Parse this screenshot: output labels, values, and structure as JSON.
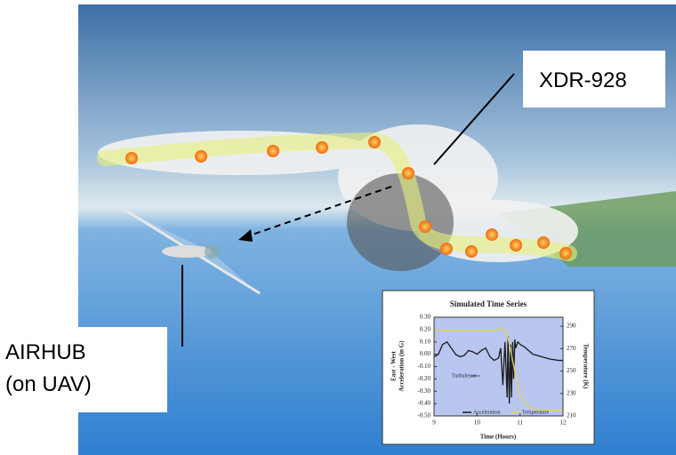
{
  "callouts": {
    "sensor": "XDR-928",
    "platform": [
      "AIRHUB",
      "(on UAV)"
    ]
  },
  "inset_chart": {
    "type": "line",
    "title": "Simulated Time Series",
    "x_label": "Time (Hours)",
    "y_label": [
      "East - West",
      "Acceleration (in G)"
    ],
    "y2_label": "Temperature (K)",
    "annotation": "Turbulence",
    "xlim": [
      9,
      12
    ],
    "xticks": [
      9,
      10,
      11,
      12
    ],
    "ylim": [
      -0.5,
      0.3
    ],
    "yticks": [
      {
        "value": 0.3,
        "label": "0.30"
      },
      {
        "value": 0.2,
        "label": "0.20"
      },
      {
        "value": 0.1,
        "label": "0.10"
      },
      {
        "value": 0,
        "label": "0.00"
      },
      {
        "value": -0.1,
        "label": "-0.10"
      },
      {
        "value": -0.2,
        "label": "-0.20"
      },
      {
        "value": -0.3,
        "label": "-0.30"
      },
      {
        "value": -0.4,
        "label": "-0.40"
      },
      {
        "value": -0.5,
        "label": "-0.50"
      }
    ],
    "y2lim": [
      210,
      298
    ],
    "y2ticks": [
      210,
      230,
      250,
      270,
      290
    ],
    "series": [
      {
        "name": "Acceleration",
        "color": "#1a1a1a",
        "x": [
          9.0,
          9.1,
          9.2,
          9.3,
          9.4,
          9.5,
          9.6,
          9.7,
          9.8,
          9.9,
          10.0,
          10.1,
          10.2,
          10.3,
          10.4,
          10.5,
          10.55,
          10.6,
          10.65,
          10.7,
          10.72,
          10.75,
          10.78,
          10.8,
          10.83,
          10.85,
          10.88,
          10.9,
          10.95,
          11.0,
          11.1,
          11.2,
          11.3,
          11.5,
          11.7,
          11.9,
          12.0
        ],
        "values": [
          -0.02,
          0.0,
          0.08,
          0.1,
          0.05,
          0.0,
          -0.02,
          -0.01,
          0.03,
          0.02,
          0.0,
          0.03,
          0.05,
          -0.02,
          -0.05,
          -0.03,
          0.05,
          -0.25,
          0.1,
          -0.35,
          0.15,
          -0.4,
          0.08,
          -0.35,
          0.1,
          -0.2,
          0.12,
          0.05,
          0.1,
          0.08,
          0.06,
          0.03,
          0.0,
          -0.02,
          -0.04,
          -0.05,
          -0.05
        ]
      },
      {
        "name": "Temperature",
        "color": "#e8d44a",
        "axis": "y2",
        "x": [
          9.0,
          9.5,
          10.0,
          10.4,
          10.6,
          10.7,
          10.8,
          10.9,
          11.0,
          11.1,
          11.3,
          11.6,
          12.0
        ],
        "values": [
          287,
          286,
          286,
          286,
          288,
          283,
          265,
          245,
          230,
          222,
          216,
          215,
          215
        ]
      }
    ]
  }
}
